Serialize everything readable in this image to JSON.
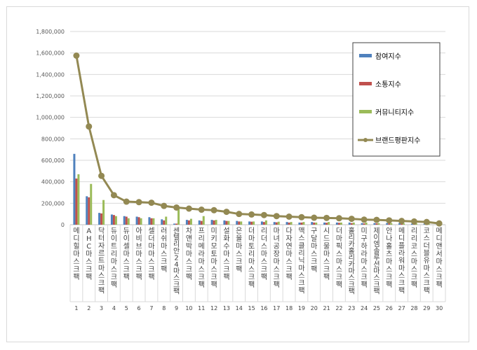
{
  "chart_data": {
    "type": "bar",
    "title": "",
    "xlabel": "",
    "ylabel": "",
    "ylim": [
      0,
      1800000
    ],
    "yticks": [
      0,
      200000,
      400000,
      600000,
      800000,
      1000000,
      1200000,
      1400000,
      1600000,
      1800000
    ],
    "ytick_labels": [
      "0",
      "200,000",
      "400,000",
      "600,000",
      "800,000",
      "1,000,000",
      "1,200,000",
      "1,400,000",
      "1,600,000",
      "1,800,000"
    ],
    "grid": "horizontal",
    "legend_position": "top-right",
    "categories": [
      "메디힐마스크팩",
      "AHC마스크팩",
      "닥터자르트마스크팩",
      "듀이트리마스크팩",
      "듀이셀마스크팩",
      "아비브마스크팩",
      "셀더마마스크팩",
      "러쉬마스크팩",
      "센텔리안24마스크팩",
      "차앤박마스크팩",
      "프리메라마스크팩",
      "미키모토마스크팩",
      "설화수마스크팩",
      "은율마스크팩",
      "더마토리마스크팩",
      "리더스마스크팩",
      "마녀공장마스크팩",
      "다자연마스크팩",
      "맥스클리닉마스크팩",
      "구달마스크팩",
      "시드물마스크팩",
      "더마픽스마스크팩",
      "홀리카홀리카마스크팩",
      "미구하라마스크팩",
      "제이엠솔루션마스크팩",
      "안나홀츠마스크팩",
      "메디플라워마스크팩",
      "리리코스마스크팩",
      "코스더블유마스크팩",
      "메디앤서마스크팩"
    ],
    "ranks": [
      "1",
      "2",
      "3",
      "4",
      "5",
      "6",
      "7",
      "8",
      "9",
      "10",
      "11",
      "12",
      "13",
      "14",
      "15",
      "16",
      "17",
      "18",
      "19",
      "20",
      "21",
      "22",
      "23",
      "24",
      "25",
      "26",
      "27",
      "28",
      "29",
      "30"
    ],
    "series": [
      {
        "name": "참여지수",
        "color": "#4f81bd",
        "kind": "bar",
        "values": [
          660000,
          265000,
          110000,
          95000,
          80000,
          75000,
          70000,
          50000,
          10000,
          45000,
          40000,
          45000,
          40000,
          35000,
          30000,
          30000,
          25000,
          25000,
          20000,
          25000,
          20000,
          20000,
          20000,
          15000,
          15000,
          15000,
          15000,
          10000,
          10000,
          5000
        ]
      },
      {
        "name": "소통지수",
        "color": "#c0504d",
        "kind": "bar",
        "values": [
          430000,
          255000,
          105000,
          90000,
          75000,
          70000,
          60000,
          40000,
          10000,
          40000,
          35000,
          40000,
          35000,
          30000,
          28000,
          25000,
          22000,
          20000,
          20000,
          20000,
          18000,
          18000,
          15000,
          12000,
          12000,
          12000,
          12000,
          10000,
          8000,
          5000
        ]
      },
      {
        "name": "커뮤니티지수",
        "color": "#9bbb59",
        "kind": "bar",
        "values": [
          470000,
          380000,
          230000,
          80000,
          60000,
          60000,
          60000,
          75000,
          155000,
          55000,
          80000,
          45000,
          35000,
          30000,
          30000,
          40000,
          28000,
          25000,
          25000,
          20000,
          25000,
          20000,
          20000,
          20000,
          15000,
          15000,
          12000,
          12000,
          10000,
          5000
        ]
      },
      {
        "name": "브랜드평판지수",
        "color": "#938953",
        "kind": "line",
        "values": [
          1575000,
          915000,
          455000,
          275000,
          215000,
          210000,
          205000,
          175000,
          160000,
          150000,
          140000,
          135000,
          120000,
          100000,
          95000,
          90000,
          80000,
          75000,
          70000,
          65000,
          63000,
          60000,
          55000,
          47000,
          45000,
          40000,
          35000,
          30000,
          25000,
          12000
        ]
      }
    ]
  }
}
